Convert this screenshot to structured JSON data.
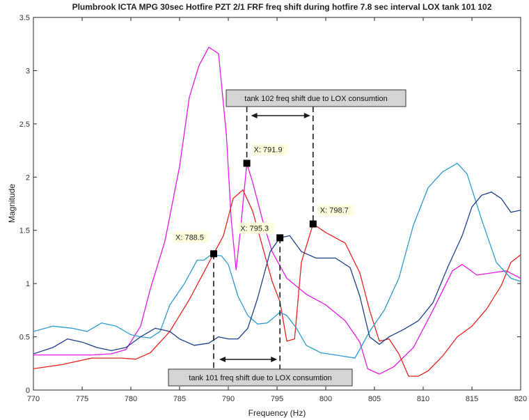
{
  "chart_data": {
    "type": "line",
    "title": "Plumbrook ICTA MPG 30sec Hotfire  PZT 2/1 FRF freq shift during hotfire 7.8 sec interval LOX tank 101 102",
    "xlabel": "Frequency (Hz)",
    "ylabel": "Magnitude",
    "xlim": [
      770,
      820
    ],
    "ylim": [
      0,
      3.5
    ],
    "x_ticks": [
      "770",
      "775",
      "780",
      "785",
      "790",
      "795",
      "800",
      "805",
      "810",
      "815",
      "820"
    ],
    "y_ticks": [
      "0",
      "0.5",
      "1",
      "1.5",
      "2",
      "2.5",
      "3",
      "3.5"
    ],
    "grid": false,
    "series": [
      {
        "color": "#e619e6",
        "points": [
          [
            770,
            0.33
          ],
          [
            773,
            0.33
          ],
          [
            776,
            0.33
          ],
          [
            778,
            0.34
          ],
          [
            779.5,
            0.38
          ],
          [
            781,
            0.6
          ],
          [
            782,
            0.95
          ],
          [
            783.5,
            1.4
          ],
          [
            785,
            2.1
          ],
          [
            786,
            2.75
          ],
          [
            787,
            3.05
          ],
          [
            788,
            3.22
          ],
          [
            789,
            3.16
          ],
          [
            789.8,
            2.4
          ],
          [
            790.3,
            1.6
          ],
          [
            790.8,
            1.13
          ],
          [
            791.3,
            1.55
          ],
          [
            791.9,
            2.13
          ],
          [
            792.5,
            1.95
          ],
          [
            793.5,
            1.6
          ],
          [
            794.5,
            1.3
          ],
          [
            796,
            1.05
          ],
          [
            798,
            0.9
          ],
          [
            800,
            0.8
          ],
          [
            802,
            0.65
          ],
          [
            803.5,
            0.45
          ],
          [
            804.3,
            0.2
          ],
          [
            805.5,
            0.15
          ],
          [
            807,
            0.22
          ],
          [
            809,
            0.4
          ],
          [
            811,
            0.75
          ],
          [
            813,
            1.12
          ],
          [
            814,
            1.18
          ],
          [
            815.5,
            1.08
          ],
          [
            817,
            1.1
          ],
          [
            818.5,
            1.12
          ],
          [
            820,
            1.05
          ]
        ]
      },
      {
        "color": "#e8231f",
        "points": [
          [
            770,
            0.2
          ],
          [
            773,
            0.24
          ],
          [
            776,
            0.3
          ],
          [
            779,
            0.3
          ],
          [
            780.5,
            0.29
          ],
          [
            782,
            0.35
          ],
          [
            784,
            0.55
          ],
          [
            786,
            0.85
          ],
          [
            788.5,
            1.28
          ],
          [
            789.5,
            1.45
          ],
          [
            790.5,
            1.8
          ],
          [
            791.5,
            1.88
          ],
          [
            792.5,
            1.68
          ],
          [
            793.5,
            1.35
          ],
          [
            794.5,
            1.02
          ],
          [
            795.3,
            0.83
          ],
          [
            796,
            0.46
          ],
          [
            796.8,
            0.48
          ],
          [
            797.5,
            1.2
          ],
          [
            798.7,
            1.56
          ],
          [
            800,
            1.48
          ],
          [
            802,
            1.38
          ],
          [
            803.5,
            1.1
          ],
          [
            804.5,
            0.75
          ],
          [
            805.5,
            0.46
          ],
          [
            806.5,
            0.48
          ],
          [
            807.5,
            0.34
          ],
          [
            808.5,
            0.13
          ],
          [
            809.5,
            0.13
          ],
          [
            810.5,
            0.18
          ],
          [
            812,
            0.32
          ],
          [
            813.5,
            0.5
          ],
          [
            815,
            0.6
          ],
          [
            816.5,
            0.76
          ],
          [
            818,
            0.98
          ],
          [
            819,
            1.2
          ],
          [
            820,
            1.27
          ]
        ]
      },
      {
        "color": "#2b9bd1",
        "points": [
          [
            770,
            0.55
          ],
          [
            772,
            0.6
          ],
          [
            774,
            0.58
          ],
          [
            775.5,
            0.55
          ],
          [
            777,
            0.63
          ],
          [
            778.5,
            0.6
          ],
          [
            780,
            0.52
          ],
          [
            781,
            0.5
          ],
          [
            782,
            0.49
          ],
          [
            783,
            0.55
          ],
          [
            784,
            0.8
          ],
          [
            785.5,
            1.0
          ],
          [
            786.8,
            1.22
          ],
          [
            787.5,
            1.22
          ],
          [
            788.2,
            1.27
          ],
          [
            789.3,
            1.26
          ],
          [
            790,
            1.18
          ],
          [
            791,
            0.88
          ],
          [
            792,
            0.7
          ],
          [
            793,
            0.62
          ],
          [
            794,
            0.63
          ],
          [
            795.3,
            0.73
          ],
          [
            796,
            0.7
          ],
          [
            797,
            0.58
          ],
          [
            798,
            0.42
          ],
          [
            799.5,
            0.35
          ],
          [
            801,
            0.33
          ],
          [
            803,
            0.3
          ],
          [
            804.5,
            0.55
          ],
          [
            806,
            0.75
          ],
          [
            807.5,
            1.05
          ],
          [
            809,
            1.55
          ],
          [
            810.5,
            1.9
          ],
          [
            812,
            2.05
          ],
          [
            813.5,
            2.13
          ],
          [
            814.5,
            2.03
          ],
          [
            816,
            1.6
          ],
          [
            817.5,
            1.2
          ],
          [
            819,
            1.05
          ],
          [
            820,
            1.02
          ]
        ]
      },
      {
        "color": "#1f3d8c",
        "points": [
          [
            770,
            0.34
          ],
          [
            772,
            0.4
          ],
          [
            773.5,
            0.48
          ],
          [
            775,
            0.45
          ],
          [
            776.5,
            0.4
          ],
          [
            778,
            0.37
          ],
          [
            779.5,
            0.4
          ],
          [
            781,
            0.5
          ],
          [
            782.5,
            0.58
          ],
          [
            784,
            0.55
          ],
          [
            785,
            0.48
          ],
          [
            786.5,
            0.42
          ],
          [
            788,
            0.44
          ],
          [
            789,
            0.5
          ],
          [
            790,
            0.48
          ],
          [
            791,
            0.48
          ],
          [
            792,
            0.58
          ],
          [
            793,
            0.86
          ],
          [
            794.3,
            1.3
          ],
          [
            795.3,
            1.43
          ],
          [
            796.3,
            1.45
          ],
          [
            797.5,
            1.3
          ],
          [
            799,
            1.24
          ],
          [
            801,
            1.24
          ],
          [
            802.5,
            1.15
          ],
          [
            803.5,
            0.88
          ],
          [
            804.5,
            0.5
          ],
          [
            805.5,
            0.43
          ],
          [
            806.5,
            0.5
          ],
          [
            808,
            0.57
          ],
          [
            809.5,
            0.65
          ],
          [
            811,
            0.82
          ],
          [
            812.5,
            1.15
          ],
          [
            814,
            1.45
          ],
          [
            815,
            1.72
          ],
          [
            816,
            1.83
          ],
          [
            817,
            1.86
          ],
          [
            818,
            1.8
          ],
          [
            819,
            1.67
          ],
          [
            820,
            1.69
          ]
        ]
      }
    ],
    "markers": [
      {
        "x": 788.5,
        "y": 1.28,
        "label": "X: 788.5"
      },
      {
        "x": 791.9,
        "y": 2.13,
        "label": "X: 791.9"
      },
      {
        "x": 795.3,
        "y": 1.43,
        "label": "X: 795.3"
      },
      {
        "x": 798.7,
        "y": 1.56,
        "label": "X: 798.7"
      }
    ],
    "annotations": {
      "tank_102": {
        "text": "tank 102   freq shift  due to LOX consumtion",
        "from": 791.9,
        "to": 798.7
      },
      "tank_101": {
        "text": "tank 101   freq shift  due to LOX consumtion",
        "from": 788.5,
        "to": 795.3
      }
    }
  }
}
